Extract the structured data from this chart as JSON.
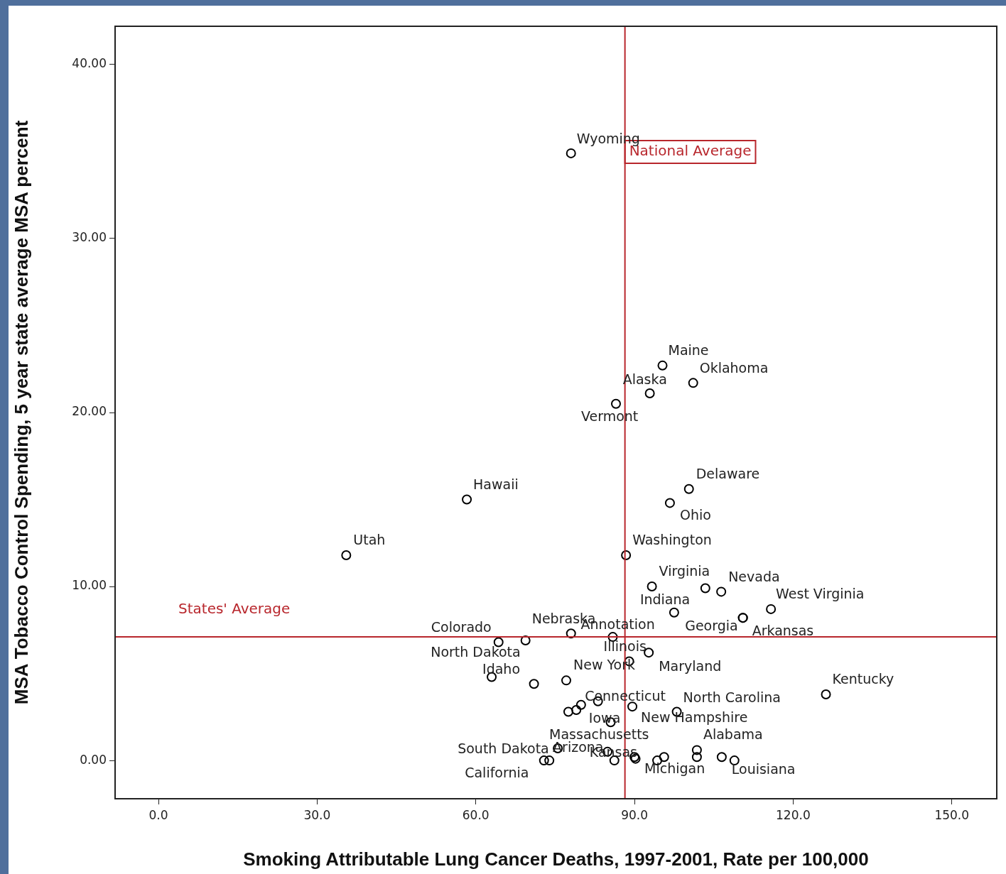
{
  "chart_data": {
    "type": "scatter",
    "xlabel": "Smoking Attributable Lung Cancer Deaths, 1997-2001, Rate per 100,000",
    "ylabel": "MSA Tobacco Control Spending, 5 year state average MSA percent",
    "x": [
      78.0,
      95.3,
      92.9,
      101.1,
      86.5,
      100.3,
      96.7,
      58.3,
      35.5,
      88.4,
      93.3,
      103.4,
      106.4,
      115.8,
      97.5,
      110.5,
      110.5,
      64.3,
      69.4,
      78.0,
      85.9,
      92.7,
      89.0,
      63.0,
      71.0,
      77.1,
      83.1,
      79.9,
      79.0,
      77.5,
      89.6,
      85.5,
      98.0,
      126.2,
      75.5,
      72.9,
      73.9,
      84.9,
      86.2,
      90.0,
      90.2,
      94.3,
      95.6,
      101.8,
      101.8,
      106.5,
      108.9
    ],
    "values": [
      34.9,
      22.7,
      21.1,
      21.7,
      20.5,
      15.6,
      14.8,
      15.0,
      11.8,
      11.8,
      10.0,
      9.9,
      9.7,
      8.7,
      8.5,
      8.2,
      8.2,
      6.8,
      6.9,
      7.3,
      7.1,
      6.2,
      5.7,
      4.8,
      4.4,
      4.6,
      3.4,
      3.2,
      2.9,
      2.8,
      3.1,
      2.2,
      2.8,
      3.8,
      0.7,
      0.0,
      0.0,
      0.5,
      0.0,
      0.2,
      0.1,
      0.0,
      0.2,
      0.6,
      0.2,
      0.2,
      0.0
    ],
    "color": "#000000",
    "marker": "circle",
    "grid": false,
    "legend": false,
    "xlim": [
      -8.2,
      158.5
    ],
    "ylim": [
      -2.2,
      42.2
    ],
    "xticks": [
      {
        "value": 0,
        "label": "0.0"
      },
      {
        "value": 30,
        "label": "30.0"
      },
      {
        "value": 60,
        "label": "60.0"
      },
      {
        "value": 90,
        "label": "90.0"
      },
      {
        "value": 120,
        "label": "120.0"
      },
      {
        "value": 150,
        "label": "150.0"
      }
    ],
    "yticks": [
      {
        "value": 0,
        "label": "0.00"
      },
      {
        "value": 10,
        "label": "10.00"
      },
      {
        "value": 20,
        "label": "20.00"
      },
      {
        "value": 30,
        "label": "30.00"
      },
      {
        "value": 40,
        "label": "40.00"
      }
    ],
    "ref_lines": [
      {
        "axis": "x",
        "value": 88.2,
        "label": "National Average",
        "color": "#b8262c"
      },
      {
        "axis": "y",
        "value": 7.1,
        "label": "States' Average",
        "color": "#b8262c"
      }
    ],
    "annotations": [
      {
        "text": "Wyoming",
        "x": 78.0,
        "y": 34.9
      },
      {
        "text": "Maine",
        "x": 95.3,
        "y": 22.7
      },
      {
        "text": "Oklahoma",
        "x": 101.1,
        "y": 21.7
      },
      {
        "text": "Alaska",
        "x": 92.9,
        "y": 21.1
      },
      {
        "text": "Vermont",
        "x": 86.5,
        "y": 20.5
      },
      {
        "text": "Delaware",
        "x": 100.3,
        "y": 15.6
      },
      {
        "text": "Ohio",
        "x": 96.7,
        "y": 14.8
      },
      {
        "text": "Hawaii",
        "x": 58.3,
        "y": 15.0
      },
      {
        "text": "Utah",
        "x": 35.5,
        "y": 11.8
      },
      {
        "text": "Washington",
        "x": 88.4,
        "y": 11.8
      },
      {
        "text": "Virginia",
        "x": 93.3,
        "y": 10.0
      },
      {
        "text": "Nevada",
        "x": 106.4,
        "y": 9.7
      },
      {
        "text": "West Virginia",
        "x": 115.8,
        "y": 8.7
      },
      {
        "text": "Indiana",
        "x": 97.5,
        "y": 8.5
      },
      {
        "text": "Georgia",
        "x": 110.5,
        "y": 8.2
      },
      {
        "text": "Arkansas",
        "x": 110.5,
        "y": 8.2
      },
      {
        "text": "Colorado",
        "x": 64.3,
        "y": 6.8
      },
      {
        "text": "North Dakota",
        "x": 69.4,
        "y": 6.9
      },
      {
        "text": "Nebraska",
        "x": 78.0,
        "y": 7.3
      },
      {
        "text": "Annotation",
        "x": 85.9,
        "y": 7.1
      },
      {
        "text": "Illinois",
        "x": 89.0,
        "y": 5.7
      },
      {
        "text": "New York",
        "x": 77.1,
        "y": 4.6
      },
      {
        "text": "Maryland",
        "x": 92.7,
        "y": 6.2
      },
      {
        "text": "Idaho",
        "x": 63.0,
        "y": 4.8
      },
      {
        "text": "Connecticut",
        "x": 79.0,
        "y": 2.9
      },
      {
        "text": "North Carolina",
        "x": 98.0,
        "y": 2.8
      },
      {
        "text": "Iowa",
        "x": 79.9,
        "y": 3.2
      },
      {
        "text": "New Hampshire",
        "x": 89.6,
        "y": 3.1
      },
      {
        "text": "Massachusetts",
        "x": 84.9,
        "y": 0.5
      },
      {
        "text": "Arizona",
        "x": 75.5,
        "y": 0.7
      },
      {
        "text": "South Dakota",
        "x": 72.9,
        "y": 0.0
      },
      {
        "text": "California",
        "x": 73.9,
        "y": 0.0
      },
      {
        "text": "Kansas",
        "x": 86.2,
        "y": 0.0
      },
      {
        "text": "Michigan",
        "x": 90.0,
        "y": 0.2
      },
      {
        "text": "Alabama",
        "x": 101.8,
        "y": 0.6
      },
      {
        "text": "Louisiana",
        "x": 108.9,
        "y": 0.0
      },
      {
        "text": "Kentucky",
        "x": 126.2,
        "y": 3.8
      }
    ]
  }
}
